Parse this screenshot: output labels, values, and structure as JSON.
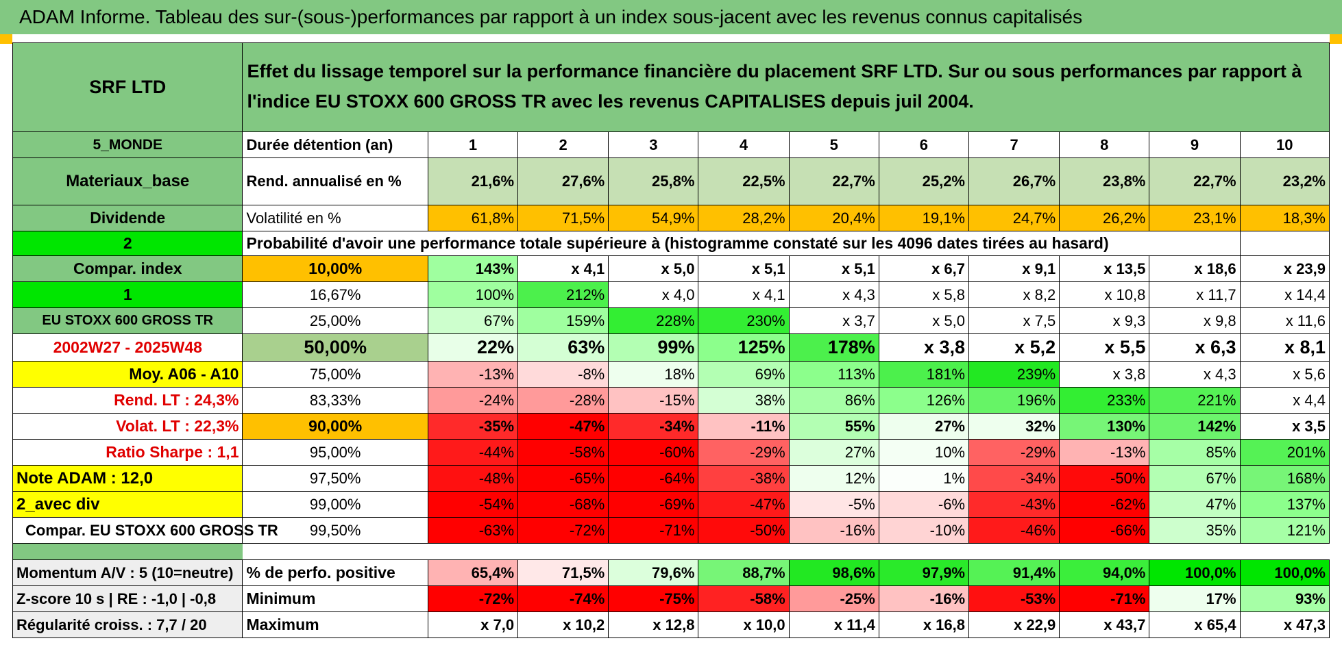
{
  "banner": {
    "title": "ADAM Informe. Tableau des sur-(sous-)performances par rapport à un index sous-jacent avec les revenus connus capitalisés"
  },
  "colors": {
    "green_header": "#82c882",
    "orange": "#ffc000",
    "yellow": "#ffff00",
    "bright_green": "#00e600",
    "red": "#ff0000"
  },
  "header": {
    "security": "SRF LTD",
    "description": "Effet du lissage temporel sur la performance financière du placement SRF LTD. Sur ou sous performances par rapport à l'indice EU STOXX 600 GROSS TR avec les revenus CAPITALISES depuis juil 2004."
  },
  "side": {
    "zone": "5_MONDE",
    "sector": "Materiaux_base",
    "type": "Dividende",
    "opt1": "2",
    "compar_label": "Compar. index",
    "opt2": "1",
    "index_name": "EU STOXX 600 GROSS TR",
    "period": "2002W27 - 2025W48",
    "moy": "Moy. A06 - A10",
    "rend_lt": "Rend. LT :   24,3%",
    "volat_lt": "Volat. LT :   22,3%",
    "sharpe": "Ratio Sharpe :    1,1",
    "note": "Note ADAM : 12,0",
    "div_mode": "2_avec div",
    "compar_full": "Compar. EU STOXX 600 GROSS TR",
    "momentum": "Momentum A/V : 5 (10=neutre)",
    "zscore": "Z-score 10 s | RE : -1,0 | -0,8",
    "regularite": "Régularité croiss. : 7,7 / 20"
  },
  "metrics": {
    "duree_label": "Durée détention (an)",
    "years": [
      "1",
      "2",
      "3",
      "4",
      "5",
      "6",
      "7",
      "8",
      "9",
      "10"
    ],
    "rend_label": "Rend. annualisé en %",
    "rend": [
      "21,6%",
      "27,6%",
      "25,8%",
      "22,5%",
      "22,7%",
      "25,2%",
      "26,7%",
      "23,8%",
      "22,7%",
      "23,2%"
    ],
    "vol_label": "Volatilité en %",
    "vol": [
      "61,8%",
      "71,5%",
      "54,9%",
      "28,2%",
      "20,4%",
      "19,1%",
      "24,7%",
      "26,2%",
      "23,1%",
      "18,3%"
    ],
    "prob_heading": "Probabilité d'avoir une performance totale supérieure à (histogramme constaté sur les 4096 dates tirées au hasard)"
  },
  "prob_rows": [
    {
      "pct": "10,00%",
      "values": [
        "143%",
        "x 4,1",
        "x 5,0",
        "x 5,1",
        "x 5,1",
        "x 6,7",
        "x 9,1",
        "x 13,5",
        "x 18,6",
        "x 23,9"
      ]
    },
    {
      "pct": "16,67%",
      "values": [
        "100%",
        "212%",
        "x 4,0",
        "x 4,1",
        "x 4,3",
        "x 5,8",
        "x 8,2",
        "x 10,8",
        "x 11,7",
        "x 14,4"
      ]
    },
    {
      "pct": "25,00%",
      "values": [
        "67%",
        "159%",
        "228%",
        "230%",
        "x 3,7",
        "x 5,0",
        "x 7,5",
        "x 9,3",
        "x 9,8",
        "x 11,6"
      ]
    },
    {
      "pct": "50,00%",
      "values": [
        "22%",
        "63%",
        "99%",
        "125%",
        "178%",
        "x 3,8",
        "x 5,2",
        "x 5,5",
        "x 6,3",
        "x 8,1"
      ]
    },
    {
      "pct": "75,00%",
      "values": [
        "-13%",
        "-8%",
        "18%",
        "69%",
        "113%",
        "181%",
        "239%",
        "x 3,8",
        "x 4,3",
        "x 5,6"
      ]
    },
    {
      "pct": "83,33%",
      "values": [
        "-24%",
        "-28%",
        "-15%",
        "38%",
        "86%",
        "126%",
        "196%",
        "233%",
        "221%",
        "x 4,4"
      ]
    },
    {
      "pct": "90,00%",
      "values": [
        "-35%",
        "-47%",
        "-34%",
        "-11%",
        "55%",
        "27%",
        "32%",
        "130%",
        "142%",
        "x 3,5"
      ]
    },
    {
      "pct": "95,00%",
      "values": [
        "-44%",
        "-58%",
        "-60%",
        "-29%",
        "27%",
        "10%",
        "-29%",
        "-13%",
        "85%",
        "201%"
      ]
    },
    {
      "pct": "97,50%",
      "values": [
        "-48%",
        "-65%",
        "-64%",
        "-38%",
        "12%",
        "1%",
        "-34%",
        "-50%",
        "67%",
        "168%"
      ]
    },
    {
      "pct": "99,00%",
      "values": [
        "-54%",
        "-68%",
        "-69%",
        "-47%",
        "-5%",
        "-6%",
        "-43%",
        "-62%",
        "47%",
        "137%"
      ]
    },
    {
      "pct": "99,50%",
      "values": [
        "-63%",
        "-72%",
        "-71%",
        "-50%",
        "-16%",
        "-10%",
        "-46%",
        "-66%",
        "35%",
        "121%"
      ]
    }
  ],
  "stats": {
    "pos_label": "% de perfo. positive",
    "pos": [
      "65,4%",
      "71,5%",
      "79,6%",
      "88,7%",
      "98,6%",
      "97,9%",
      "91,4%",
      "94,0%",
      "100,0%",
      "100,0%"
    ],
    "min_label": "Minimum",
    "min": [
      "-72%",
      "-74%",
      "-75%",
      "-58%",
      "-25%",
      "-16%",
      "-53%",
      "-71%",
      "17%",
      "93%"
    ],
    "max_label": "Maximum",
    "max": [
      "x 7,0",
      "x 10,2",
      "x 12,8",
      "x 10,0",
      "x 11,4",
      "x 16,8",
      "x 22,9",
      "x 43,7",
      "x 65,4",
      "x 47,3"
    ]
  }
}
